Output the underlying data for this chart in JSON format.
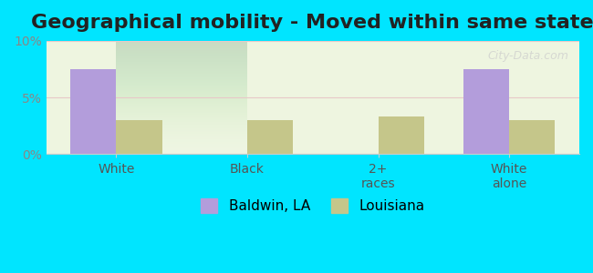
{
  "title": "Geographical mobility - Moved within same state",
  "categories": [
    "White",
    "Black",
    "2+\nraces",
    "White\nalone"
  ],
  "baldwin_values": [
    7.5,
    0,
    0,
    7.5
  ],
  "louisiana_values": [
    3.0,
    3.0,
    3.3,
    3.0
  ],
  "baldwin_color": "#b39ddb",
  "louisiana_color": "#c5c68a",
  "background_color": "#00e5ff",
  "plot_bg_gradient_top": "#f0f7e6",
  "plot_bg_gradient_bottom": "#e8f5e0",
  "ylim": [
    0,
    10
  ],
  "yticks": [
    0,
    5,
    10
  ],
  "ytick_labels": [
    "0%",
    "5%",
    "10%"
  ],
  "bar_width": 0.35,
  "legend_labels": [
    "Baldwin, LA",
    "Louisiana"
  ],
  "title_fontsize": 16,
  "tick_fontsize": 10,
  "legend_fontsize": 11
}
